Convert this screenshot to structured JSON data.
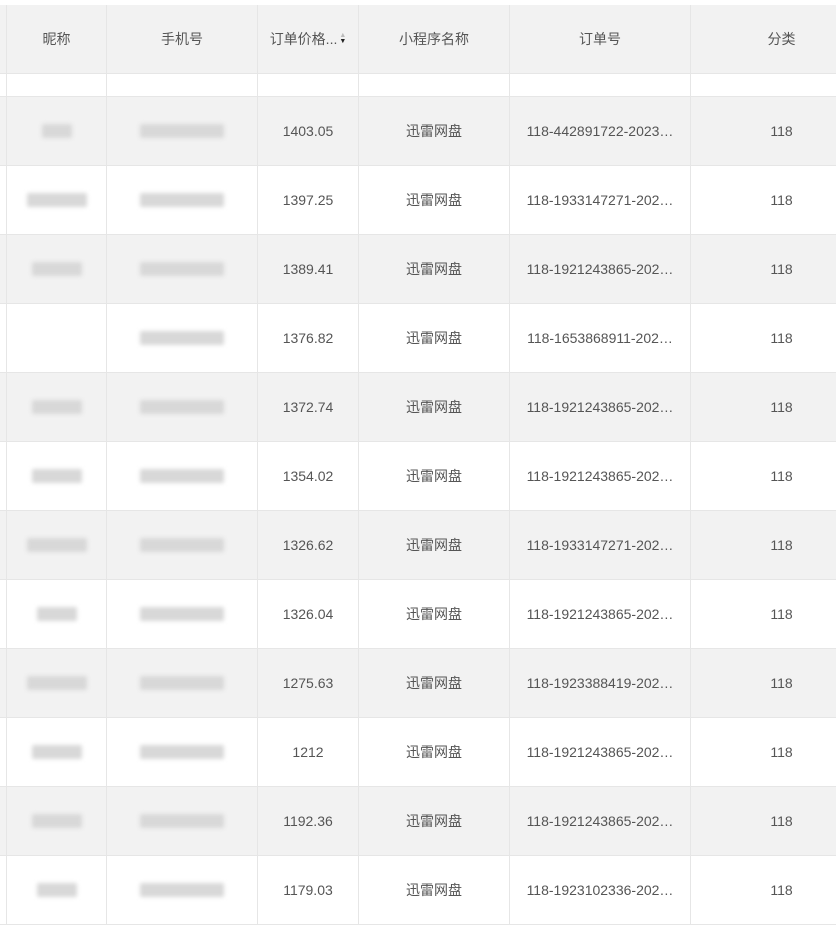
{
  "columns": [
    "昵称",
    "手机号",
    "订单价格...",
    "小程序名称",
    "订单号",
    "分类"
  ],
  "sort_column": "订单价格",
  "rows": [
    {
      "price": "1403.05",
      "app": "迅雷网盘",
      "order": "118-442891722-2023…",
      "category": "118"
    },
    {
      "price": "1397.25",
      "app": "迅雷网盘",
      "order": "118-1933147271-202…",
      "category": "118"
    },
    {
      "price": "1389.41",
      "app": "迅雷网盘",
      "order": "118-1921243865-202…",
      "category": "118"
    },
    {
      "price": "1376.82",
      "app": "迅雷网盘",
      "order": "118-1653868911-202…",
      "category": "118"
    },
    {
      "price": "1372.74",
      "app": "迅雷网盘",
      "order": "118-1921243865-202…",
      "category": "118"
    },
    {
      "price": "1354.02",
      "app": "迅雷网盘",
      "order": "118-1921243865-202…",
      "category": "118"
    },
    {
      "price": "1326.62",
      "app": "迅雷网盘",
      "order": "118-1933147271-202…",
      "category": "118"
    },
    {
      "price": "1326.04",
      "app": "迅雷网盘",
      "order": "118-1921243865-202…",
      "category": "118"
    },
    {
      "price": "1275.63",
      "app": "迅雷网盘",
      "order": "118-1923388419-202…",
      "category": "118"
    },
    {
      "price": "1212",
      "app": "迅雷网盘",
      "order": "118-1921243865-202…",
      "category": "118"
    },
    {
      "price": "1192.36",
      "app": "迅雷网盘",
      "order": "118-1921243865-202…",
      "category": "118"
    },
    {
      "price": "1179.03",
      "app": "迅雷网盘",
      "order": "118-1923102336-202…",
      "category": "118"
    }
  ]
}
